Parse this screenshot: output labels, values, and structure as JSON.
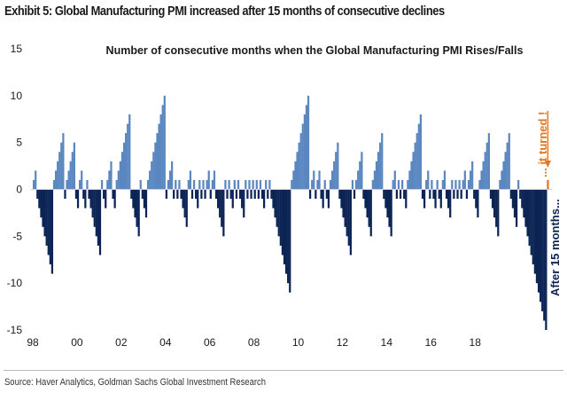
{
  "exhibit": {
    "title": "Exhibit 5: Global Manufacturing PMI increased after 15 months of consecutive declines",
    "source": "Source: Haver Analytics, Goldman Sachs Global Investment Research"
  },
  "chart_data": {
    "type": "bar",
    "title": "Number of consecutive months when the Global Manufacturing PMI Rises/Falls",
    "xlabel": "",
    "ylabel": "",
    "ylim": [
      -15,
      15
    ],
    "yticks": [
      15,
      10,
      5,
      0,
      -5,
      -10,
      -15
    ],
    "xtick_labels": [
      "98",
      "00",
      "02",
      "04",
      "06",
      "08",
      "10",
      "12",
      "14",
      "16",
      "18"
    ],
    "x_start": "1998-01",
    "frequency": "monthly",
    "grid": false,
    "series": [
      {
        "name": "Consecutive months of rises/falls",
        "colors": {
          "positive": "#5b87c0",
          "negative": "#0b2454",
          "latest": "#e8751a"
        },
        "values": [
          1,
          2,
          -1,
          -2,
          -3,
          -4,
          -5,
          -6,
          -7,
          -8,
          -9,
          1,
          2,
          3,
          4,
          5,
          6,
          -1,
          1,
          2,
          3,
          4,
          5,
          -1,
          -2,
          1,
          2,
          -1,
          -2,
          1,
          -1,
          -2,
          -3,
          -4,
          -5,
          -6,
          -7,
          1,
          -1,
          -2,
          1,
          2,
          3,
          -1,
          -2,
          1,
          2,
          3,
          4,
          5,
          6,
          7,
          8,
          -1,
          -2,
          -3,
          -4,
          -5,
          1,
          -1,
          -2,
          -3,
          1,
          2,
          3,
          4,
          5,
          6,
          7,
          8,
          9,
          10,
          -1,
          1,
          2,
          3,
          -1,
          1,
          -1,
          1,
          -1,
          -2,
          -3,
          -4,
          1,
          2,
          -1,
          1,
          -1,
          -2,
          1,
          -1,
          1,
          -1,
          1,
          2,
          -1,
          1,
          2,
          -1,
          -2,
          -3,
          -4,
          -5,
          1,
          -1,
          1,
          -1,
          -2,
          1,
          -1,
          1,
          -1,
          -2,
          -3,
          1,
          -1,
          1,
          -1,
          1,
          -1,
          1,
          -1,
          1,
          -1,
          -2,
          1,
          -1,
          1,
          -1,
          -2,
          -3,
          -4,
          -5,
          -6,
          -7,
          -8,
          -9,
          -10,
          -11,
          1,
          2,
          3,
          4,
          5,
          6,
          7,
          8,
          9,
          10,
          -1,
          1,
          2,
          -1,
          1,
          2,
          -1,
          -2,
          1,
          -1,
          -2,
          1,
          2,
          3,
          4,
          5,
          -1,
          -2,
          -3,
          -4,
          -5,
          -6,
          -7,
          1,
          -1,
          1,
          2,
          3,
          4,
          -1,
          -2,
          -3,
          -4,
          -5,
          1,
          2,
          3,
          4,
          5,
          6,
          -1,
          -2,
          -3,
          -4,
          -5,
          1,
          2,
          -1,
          1,
          -1,
          1,
          -1,
          -2,
          1,
          2,
          3,
          4,
          5,
          6,
          7,
          8,
          -1,
          -2,
          1,
          2,
          -1,
          1,
          -1,
          -2,
          1,
          -1,
          -2,
          1,
          2,
          -1,
          -2,
          -3,
          1,
          -1,
          1,
          -1,
          1,
          -1,
          1,
          2,
          -1,
          1,
          2,
          3,
          -1,
          -2,
          -3,
          1,
          2,
          3,
          4,
          5,
          6,
          -1,
          -2,
          -3,
          -4,
          -5,
          1,
          2,
          3,
          4,
          5,
          6,
          -1,
          -2,
          -3,
          -4,
          1,
          -1,
          -2,
          -3,
          -4,
          -5,
          -6,
          -7,
          -8,
          -9,
          -10,
          -11,
          -12,
          -13,
          -14,
          -15,
          1
        ]
      }
    ],
    "annotations": [
      {
        "text": "... it turned !",
        "color": "#e8751a",
        "orientation": "vertical",
        "has_arrow": true,
        "target": "latest bar"
      },
      {
        "text": "After 15 months...",
        "color": "#0b2454",
        "orientation": "vertical"
      }
    ]
  }
}
